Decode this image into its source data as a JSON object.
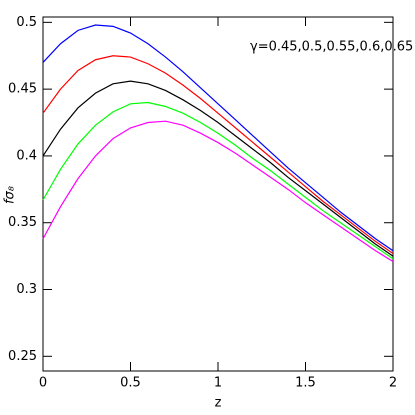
{
  "chart_data": {
    "type": "line",
    "xlabel": "z",
    "ylabel": "fσ₈",
    "annotation": "γ=0.45,0.5,0.55,0.6,0.65",
    "x": [
      0,
      0.1,
      0.2,
      0.3,
      0.4,
      0.5,
      0.6,
      0.7,
      0.8,
      0.9,
      1.0,
      1.1,
      1.2,
      1.3,
      1.4,
      1.5,
      1.6,
      1.7,
      1.8,
      1.9,
      2.0
    ],
    "series": [
      {
        "color": "#0000ff",
        "values": [
          0.47,
          0.484,
          0.494,
          0.498,
          0.497,
          0.492,
          0.484,
          0.474,
          0.463,
          0.451,
          0.439,
          0.427,
          0.415,
          0.403,
          0.391,
          0.38,
          0.369,
          0.358,
          0.348,
          0.338,
          0.329
        ]
      },
      {
        "color": "#ff0000",
        "values": [
          0.432,
          0.45,
          0.464,
          0.472,
          0.475,
          0.474,
          0.469,
          0.462,
          0.453,
          0.443,
          0.432,
          0.421,
          0.41,
          0.399,
          0.388,
          0.377,
          0.366,
          0.356,
          0.346,
          0.336,
          0.327
        ]
      },
      {
        "color": "#000000",
        "values": [
          0.4,
          0.42,
          0.436,
          0.447,
          0.454,
          0.456,
          0.454,
          0.449,
          0.442,
          0.434,
          0.425,
          0.415,
          0.405,
          0.395,
          0.384,
          0.374,
          0.364,
          0.354,
          0.344,
          0.334,
          0.325
        ]
      },
      {
        "color": "#00ff00",
        "values": [
          0.367,
          0.39,
          0.409,
          0.423,
          0.433,
          0.439,
          0.44,
          0.437,
          0.432,
          0.425,
          0.417,
          0.408,
          0.398,
          0.389,
          0.379,
          0.369,
          0.359,
          0.35,
          0.341,
          0.332,
          0.323
        ]
      },
      {
        "color": "#ff00ff",
        "values": [
          0.338,
          0.362,
          0.383,
          0.4,
          0.413,
          0.421,
          0.425,
          0.426,
          0.423,
          0.417,
          0.41,
          0.402,
          0.393,
          0.384,
          0.375,
          0.365,
          0.356,
          0.347,
          0.338,
          0.329,
          0.321
        ]
      }
    ],
    "xlim": [
      0,
      2
    ],
    "xticks": [
      0,
      0.5,
      1,
      1.5,
      2
    ],
    "ylim": [
      0.239,
      0.504
    ],
    "yticks": [
      0.25,
      0.3,
      0.35,
      0.4,
      0.45,
      0.5
    ]
  }
}
